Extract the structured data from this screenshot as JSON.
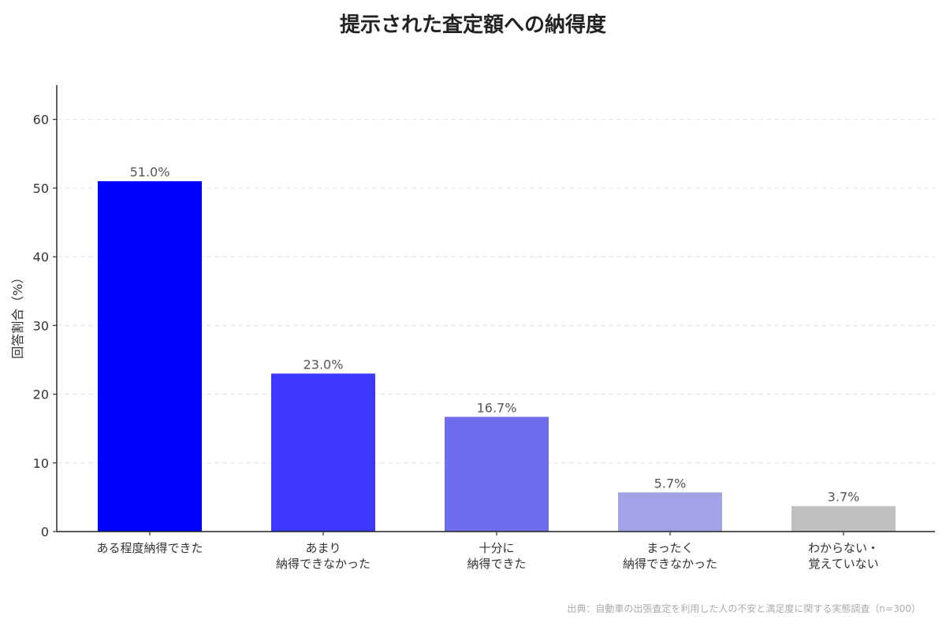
{
  "chart_data": {
    "type": "bar",
    "title": "提示された査定額への納得度",
    "ylabel": "回答割合（%）",
    "xlabel": "",
    "ylim": [
      0,
      65
    ],
    "yticks": [
      0,
      10,
      20,
      30,
      40,
      50,
      60
    ],
    "grid": true,
    "categories": [
      [
        "ある程度納得できた"
      ],
      [
        "あまり",
        "納得できなかった"
      ],
      [
        "十分に",
        "納得できた"
      ],
      [
        "まったく",
        "納得できなかった"
      ],
      [
        "わからない・",
        "覚えていない"
      ]
    ],
    "values": [
      51.0,
      23.0,
      16.7,
      5.7,
      3.7
    ],
    "value_labels": [
      "51.0%",
      "23.0%",
      "16.7%",
      "5.7%",
      "3.7%"
    ],
    "colors": [
      "#0000ff",
      "#3d37ff",
      "#6f6cee",
      "#a4a2e6",
      "#c0bfc2"
    ],
    "source": "出典：自動車の出張査定を利用した人の不安と満足度に関する実態調査（n=300）"
  }
}
